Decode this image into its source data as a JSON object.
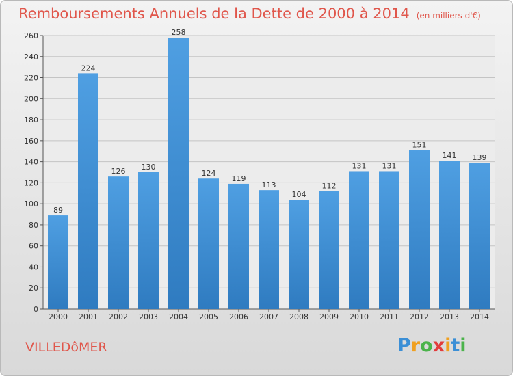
{
  "chart_data": {
    "type": "bar",
    "title": "Remboursements Annuels de la Dette de 2000 à 2014",
    "unit_label": "(en milliers d'€)",
    "categories": [
      "2000",
      "2001",
      "2002",
      "2003",
      "2004",
      "2005",
      "2006",
      "2007",
      "2008",
      "2009",
      "2010",
      "2011",
      "2012",
      "2013",
      "2014"
    ],
    "values": [
      89,
      224,
      126,
      130,
      258,
      124,
      119,
      113,
      104,
      112,
      131,
      131,
      151,
      141,
      139
    ],
    "ylim": [
      0,
      260
    ],
    "yticks": [
      0,
      20,
      40,
      60,
      80,
      100,
      120,
      140,
      160,
      180,
      200,
      220,
      240,
      260
    ],
    "grid": true,
    "bar_color": "#4f9fe2",
    "bar_color_dark": "#2f7bc0"
  },
  "town": "VILLEDôMER",
  "logo": {
    "letters": [
      "P",
      "r",
      "o",
      "x",
      "i",
      "t",
      "i"
    ],
    "colors": [
      "#3b8fd6",
      "#f0a020",
      "#4bb34b",
      "#e23c3c",
      "#f0a020",
      "#3b8fd6",
      "#4bb34b"
    ]
  }
}
